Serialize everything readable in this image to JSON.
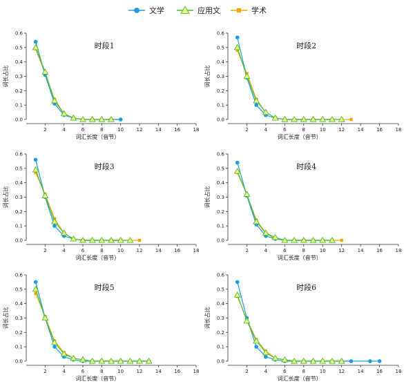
{
  "legend": [
    {
      "name": "文学",
      "color": "#1a9be0",
      "marker": "circle"
    },
    {
      "name": "应用文",
      "color": "#4bbf2e",
      "marker": "triangle"
    },
    {
      "name": "学术",
      "color": "#f5a300",
      "marker": "square"
    }
  ],
  "chart_data": [
    {
      "type": "line",
      "title": "时段1",
      "xlabel": "词汇长度（音节）",
      "ylabel": "词长占比",
      "xlim": [
        0,
        18
      ],
      "ylim": [
        0,
        0.6
      ],
      "x_ticks": [
        2,
        4,
        6,
        8,
        10,
        12,
        14,
        16,
        18
      ],
      "y_ticks": [
        0.0,
        0.1,
        0.2,
        0.3,
        0.4,
        0.5,
        0.6
      ],
      "series": [
        {
          "name": "文学",
          "x": [
            1,
            2,
            3,
            4,
            5,
            6,
            7,
            8,
            9,
            10
          ],
          "y": [
            0.54,
            0.31,
            0.11,
            0.03,
            0.01,
            0.0,
            0.0,
            0.0,
            0.0,
            0.0
          ]
        },
        {
          "name": "应用文",
          "x": [
            1,
            2,
            3,
            4,
            5,
            6,
            7,
            8,
            9
          ],
          "y": [
            0.5,
            0.33,
            0.13,
            0.04,
            0.01,
            0.0,
            0.0,
            0.0,
            0.0
          ]
        },
        {
          "name": "学术",
          "x": [
            1,
            2,
            3,
            4,
            5,
            6,
            7,
            8,
            9,
            10
          ],
          "y": [
            0.49,
            0.32,
            0.14,
            0.04,
            0.01,
            0.0,
            0.0,
            0.0,
            0.0,
            0.0
          ]
        }
      ]
    },
    {
      "type": "line",
      "title": "时段2",
      "xlabel": "词汇长度（音节）",
      "ylabel": "词长占比",
      "xlim": [
        0,
        18
      ],
      "ylim": [
        0,
        0.6
      ],
      "x_ticks": [
        2,
        4,
        6,
        8,
        10,
        12,
        14,
        16,
        18
      ],
      "y_ticks": [
        0.0,
        0.1,
        0.2,
        0.3,
        0.4,
        0.5,
        0.6
      ],
      "series": [
        {
          "name": "文学",
          "x": [
            1,
            2,
            3,
            4,
            5,
            6,
            7,
            8,
            9,
            10,
            11
          ],
          "y": [
            0.57,
            0.29,
            0.1,
            0.03,
            0.01,
            0.0,
            0.0,
            0.0,
            0.0,
            0.0,
            0.0
          ]
        },
        {
          "name": "应用文",
          "x": [
            1,
            2,
            3,
            4,
            5,
            6,
            7,
            8,
            9,
            10,
            11,
            12
          ],
          "y": [
            0.5,
            0.3,
            0.13,
            0.05,
            0.01,
            0.0,
            0.0,
            0.0,
            0.0,
            0.0,
            0.0,
            0.0
          ]
        },
        {
          "name": "学术",
          "x": [
            1,
            2,
            3,
            4,
            5,
            6,
            7,
            8,
            9,
            10,
            11,
            12,
            13
          ],
          "y": [
            0.48,
            0.32,
            0.14,
            0.05,
            0.01,
            0.0,
            0.0,
            0.0,
            0.0,
            0.0,
            0.0,
            0.0,
            0.0
          ]
        }
      ]
    },
    {
      "type": "line",
      "title": "时段3",
      "xlabel": "词汇长度（音节）",
      "ylabel": "词长占比",
      "xlim": [
        0,
        18
      ],
      "ylim": [
        0,
        0.6
      ],
      "x_ticks": [
        2,
        4,
        6,
        8,
        10,
        12,
        14,
        16,
        18
      ],
      "y_ticks": [
        0.0,
        0.1,
        0.2,
        0.3,
        0.4,
        0.5,
        0.6
      ],
      "series": [
        {
          "name": "文学",
          "x": [
            1,
            2,
            3,
            4,
            5,
            6,
            7,
            8,
            9,
            10
          ],
          "y": [
            0.56,
            0.3,
            0.1,
            0.03,
            0.01,
            0.0,
            0.0,
            0.0,
            0.0,
            0.0
          ]
        },
        {
          "name": "应用文",
          "x": [
            1,
            2,
            3,
            4,
            5,
            6,
            7,
            8,
            9,
            10,
            11
          ],
          "y": [
            0.49,
            0.31,
            0.13,
            0.05,
            0.01,
            0.0,
            0.0,
            0.0,
            0.0,
            0.0,
            0.0
          ]
        },
        {
          "name": "学术",
          "x": [
            1,
            2,
            3,
            4,
            5,
            6,
            7,
            8,
            9,
            10,
            11,
            12
          ],
          "y": [
            0.47,
            0.32,
            0.15,
            0.05,
            0.01,
            0.0,
            0.0,
            0.0,
            0.0,
            0.0,
            0.0,
            0.0
          ]
        }
      ]
    },
    {
      "type": "line",
      "title": "时段4",
      "xlabel": "词汇长度（音节）",
      "ylabel": "词长占比",
      "xlim": [
        0,
        18
      ],
      "ylim": [
        0,
        0.6
      ],
      "x_ticks": [
        2,
        4,
        6,
        8,
        10,
        12,
        14,
        16,
        18
      ],
      "y_ticks": [
        0.0,
        0.1,
        0.2,
        0.3,
        0.4,
        0.5,
        0.6
      ],
      "series": [
        {
          "name": "文学",
          "x": [
            1,
            2,
            3,
            4,
            5,
            6,
            7,
            8,
            9,
            10,
            11
          ],
          "y": [
            0.54,
            0.31,
            0.11,
            0.03,
            0.01,
            0.0,
            0.0,
            0.0,
            0.0,
            0.0,
            0.0
          ]
        },
        {
          "name": "应用文",
          "x": [
            1,
            2,
            3,
            4,
            5,
            6,
            7,
            8,
            9,
            10,
            11
          ],
          "y": [
            0.48,
            0.32,
            0.13,
            0.05,
            0.02,
            0.0,
            0.0,
            0.0,
            0.0,
            0.0,
            0.0
          ]
        },
        {
          "name": "学术",
          "x": [
            1,
            2,
            3,
            4,
            5,
            6,
            7,
            8,
            9,
            10,
            11,
            12
          ],
          "y": [
            0.47,
            0.32,
            0.14,
            0.05,
            0.01,
            0.0,
            0.0,
            0.0,
            0.0,
            0.0,
            0.0,
            0.0
          ]
        }
      ]
    },
    {
      "type": "line",
      "title": "时段5",
      "xlabel": "词汇长度（音节）",
      "ylabel": "词长占比",
      "xlim": [
        0,
        18
      ],
      "ylim": [
        0,
        0.6
      ],
      "x_ticks": [
        2,
        4,
        6,
        8,
        10,
        12,
        14,
        16,
        18
      ],
      "y_ticks": [
        0.0,
        0.1,
        0.2,
        0.3,
        0.4,
        0.5,
        0.6
      ],
      "series": [
        {
          "name": "文学",
          "x": [
            1,
            2,
            3,
            4,
            5,
            6,
            7,
            8,
            9,
            10,
            11,
            12,
            13
          ],
          "y": [
            0.55,
            0.3,
            0.1,
            0.03,
            0.01,
            0.0,
            0.0,
            0.0,
            0.0,
            0.0,
            0.0,
            0.0,
            0.0
          ]
        },
        {
          "name": "应用文",
          "x": [
            1,
            2,
            3,
            4,
            5,
            6,
            7,
            8,
            9,
            10,
            11,
            12,
            13
          ],
          "y": [
            0.5,
            0.3,
            0.13,
            0.05,
            0.02,
            0.01,
            0.0,
            0.0,
            0.0,
            0.0,
            0.0,
            0.0,
            0.0
          ]
        },
        {
          "name": "学术",
          "x": [
            1,
            2,
            3,
            4,
            5,
            6,
            7,
            8,
            9,
            10,
            11,
            12,
            13
          ],
          "y": [
            0.47,
            0.31,
            0.14,
            0.06,
            0.02,
            0.01,
            0.0,
            0.0,
            0.0,
            0.0,
            0.0,
            0.0,
            0.0
          ]
        }
      ]
    },
    {
      "type": "line",
      "title": "时段6",
      "xlabel": "词汇长度（音节）",
      "ylabel": "词长占比",
      "xlim": [
        0,
        18
      ],
      "ylim": [
        0,
        0.6
      ],
      "x_ticks": [
        2,
        4,
        6,
        8,
        10,
        12,
        14,
        16,
        18
      ],
      "y_ticks": [
        0.0,
        0.1,
        0.2,
        0.3,
        0.4,
        0.5,
        0.6
      ],
      "series": [
        {
          "name": "文学",
          "x": [
            1,
            2,
            3,
            4,
            5,
            6,
            7,
            8,
            9,
            10,
            11,
            12,
            13,
            15,
            16
          ],
          "y": [
            0.55,
            0.3,
            0.1,
            0.03,
            0.01,
            0.0,
            0.0,
            0.0,
            0.0,
            0.0,
            0.0,
            0.0,
            0.0,
            0.0,
            0.0
          ]
        },
        {
          "name": "应用文",
          "x": [
            1,
            2,
            3,
            4,
            5,
            6,
            7,
            8,
            9,
            10,
            11,
            12
          ],
          "y": [
            0.46,
            0.28,
            0.14,
            0.06,
            0.02,
            0.01,
            0.0,
            0.0,
            0.0,
            0.0,
            0.0,
            0.0
          ]
        },
        {
          "name": "学术",
          "x": [
            1,
            2,
            3,
            4,
            5,
            6,
            7,
            8,
            9,
            10,
            11,
            12,
            13
          ],
          "y": [
            0.45,
            0.29,
            0.15,
            0.07,
            0.02,
            0.01,
            0.0,
            0.0,
            0.0,
            0.0,
            0.0,
            0.0,
            0.0
          ]
        }
      ]
    }
  ]
}
